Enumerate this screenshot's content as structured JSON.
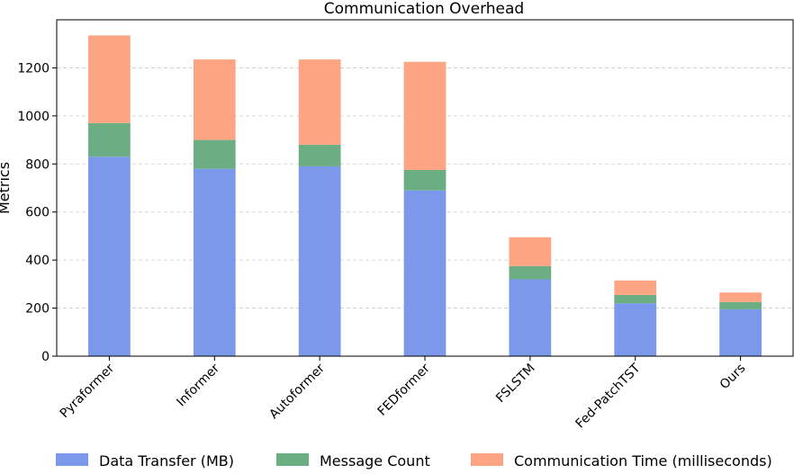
{
  "chart_data": {
    "type": "bar",
    "stacked": true,
    "title": "Communication Overhead",
    "xlabel": "",
    "ylabel": "Metrics",
    "categories": [
      "Pyraformer",
      "Informer",
      "Autoformer",
      "FEDformer",
      "FSLSTM",
      "Fed-PatchTST",
      "Ours"
    ],
    "series": [
      {
        "name": "Data Transfer (MB)",
        "color": "#7b98ea",
        "values": [
          830,
          780,
          790,
          690,
          320,
          220,
          195
        ]
      },
      {
        "name": "Message Count",
        "color": "#6cae84",
        "values": [
          140,
          120,
          90,
          85,
          55,
          35,
          30
        ]
      },
      {
        "name": "Communication Time (milliseconds)",
        "color": "#fda583",
        "values": [
          365,
          335,
          355,
          450,
          120,
          60,
          40
        ]
      }
    ],
    "ylim": [
      0,
      1400
    ],
    "yticks": [
      0,
      200,
      400,
      600,
      800,
      1000,
      1200
    ],
    "grid": "y-dashed",
    "legend_position": "bottom"
  }
}
